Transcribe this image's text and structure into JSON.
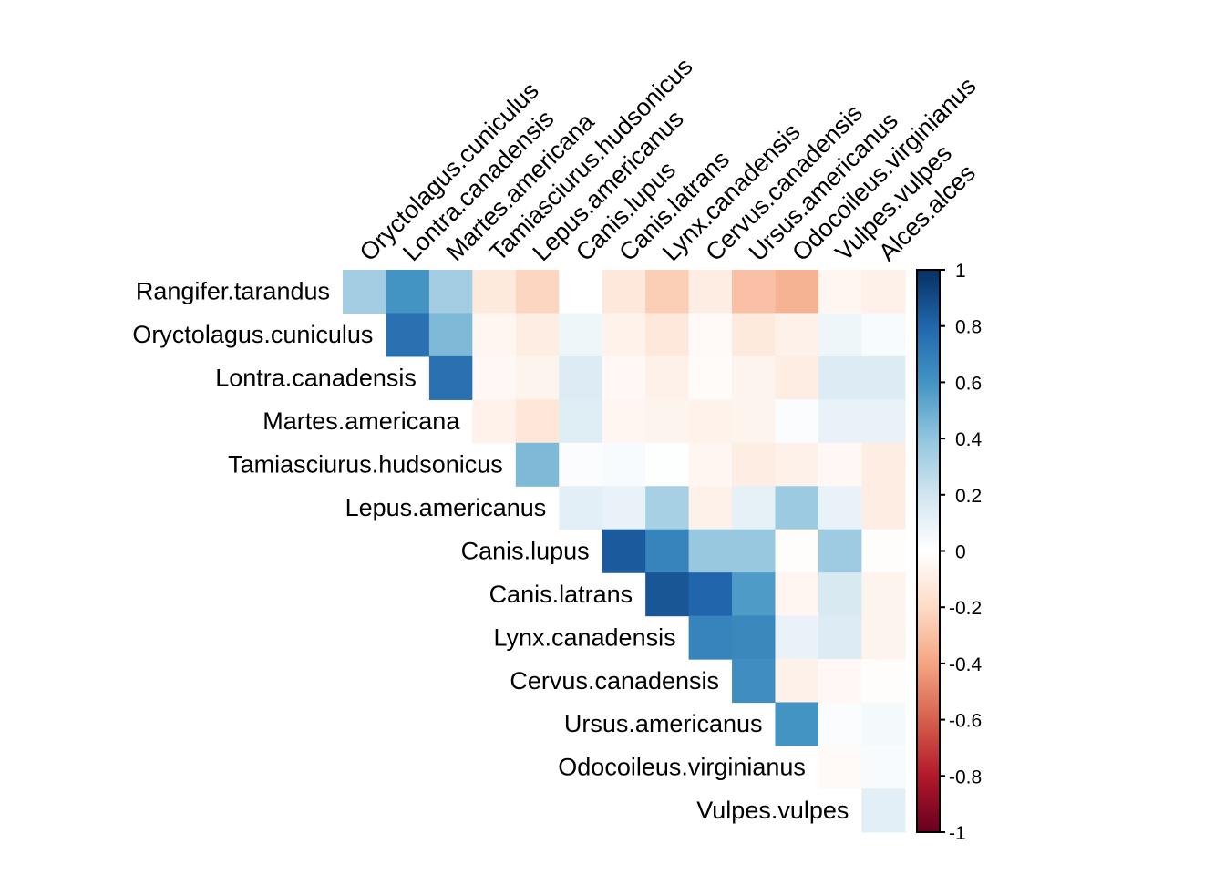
{
  "chart_data": {
    "type": "heatmap",
    "title": "",
    "subtitle": "",
    "xlabel": "",
    "ylabel": "",
    "layout": "upper-triangle correlation matrix (corrplot, method square, diagonal hidden)",
    "row_labels": [
      "Rangifer.tarandus",
      "Oryctolagus.cuniculus",
      "Lontra.canadensis",
      "Martes.americana",
      "Tamiasciurus.hudsonicus",
      "Lepus.americanus",
      "Canis.lupus",
      "Canis.latrans",
      "Lynx.canadensis",
      "Cervus.canadensis",
      "Ursus.americanus",
      "Odocoileus.virginianus",
      "Vulpes.vulpes"
    ],
    "col_labels": [
      "Oryctolagus.cuniculus",
      "Lontra.canadensis",
      "Martes.americana",
      "Tamiasciurus.hudsonicus",
      "Lepus.americanus",
      "Canis.lupus",
      "Canis.latrans",
      "Lynx.canadensis",
      "Cervus.canadensis",
      "Ursus.americanus",
      "Odocoileus.virginianus",
      "Vulpes.vulpes",
      "Alces.alces"
    ],
    "values": [
      [
        0.35,
        0.6,
        0.35,
        -0.12,
        -0.22,
        0.0,
        -0.13,
        -0.25,
        -0.1,
        -0.3,
        -0.35,
        -0.05,
        -0.08
      ],
      [
        null,
        0.75,
        0.45,
        -0.05,
        -0.1,
        0.07,
        -0.07,
        -0.13,
        -0.03,
        -0.12,
        -0.08,
        0.07,
        0.03
      ],
      [
        null,
        null,
        0.75,
        -0.04,
        -0.06,
        0.15,
        -0.04,
        -0.08,
        -0.02,
        -0.06,
        -0.1,
        0.15,
        0.15
      ],
      [
        null,
        null,
        null,
        -0.07,
        -0.14,
        0.14,
        -0.05,
        -0.06,
        -0.07,
        -0.06,
        0.02,
        0.1,
        0.1
      ],
      [
        null,
        null,
        null,
        null,
        0.45,
        0.02,
        0.03,
        0.01,
        -0.05,
        -0.1,
        -0.08,
        -0.04,
        -0.1
      ],
      [
        null,
        null,
        null,
        null,
        null,
        0.12,
        0.1,
        0.33,
        -0.08,
        0.11,
        0.37,
        0.1,
        -0.1
      ],
      [
        null,
        null,
        null,
        null,
        null,
        null,
        0.84,
        0.67,
        0.38,
        0.38,
        -0.01,
        0.36,
        -0.01
      ],
      [
        null,
        null,
        null,
        null,
        null,
        null,
        null,
        0.86,
        0.8,
        0.57,
        -0.05,
        0.17,
        -0.06
      ],
      [
        null,
        null,
        null,
        null,
        null,
        null,
        null,
        null,
        0.67,
        0.65,
        0.1,
        0.15,
        -0.06
      ],
      [
        null,
        null,
        null,
        null,
        null,
        null,
        null,
        null,
        null,
        0.62,
        -0.08,
        -0.04,
        -0.01
      ],
      [
        null,
        null,
        null,
        null,
        null,
        null,
        null,
        null,
        null,
        null,
        0.6,
        0.02,
        0.05
      ],
      [
        null,
        null,
        null,
        null,
        null,
        null,
        null,
        null,
        null,
        null,
        null,
        -0.03,
        0.03
      ],
      [
        null,
        null,
        null,
        null,
        null,
        null,
        null,
        null,
        null,
        null,
        null,
        null,
        0.12
      ]
    ],
    "color_scale": {
      "range": [
        -1,
        1
      ],
      "ticks": [
        "1",
        "0.8",
        "0.6",
        "0.4",
        "0.2",
        "0",
        "-0.2",
        "-0.4",
        "-0.6",
        "-0.8",
        "-1"
      ],
      "tick_values": [
        1,
        0.8,
        0.6,
        0.4,
        0.2,
        0,
        -0.2,
        -0.4,
        -0.6,
        -0.8,
        -1
      ],
      "palette": [
        "#67001f",
        "#b2182b",
        "#d6604d",
        "#f4a582",
        "#fddbc7",
        "#ffffff",
        "#d1e5f0",
        "#92c5de",
        "#4393c3",
        "#2166ac",
        "#053061"
      ],
      "placement": "right"
    },
    "grid": false,
    "legend": "right"
  }
}
